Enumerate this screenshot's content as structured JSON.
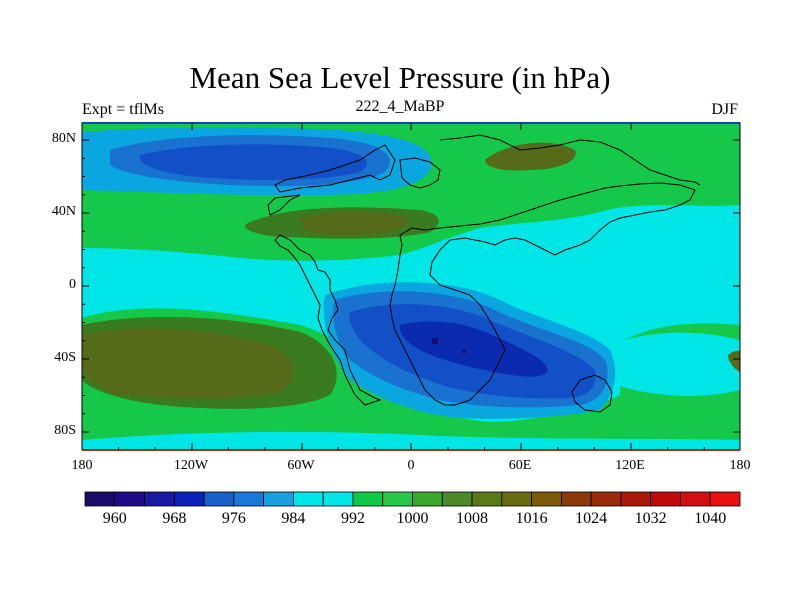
{
  "title": "Mean Sea Level Pressure (in hPa)",
  "subtitle_left": "Expt = tflMs",
  "subtitle_center": "222_4_MaBP",
  "subtitle_right": "DJF",
  "lat_labels": [
    "80N",
    "40N",
    "0",
    "40S",
    "80S"
  ],
  "lon_labels": [
    "180",
    "120W",
    "60W",
    "0",
    "60E",
    "120E",
    "180"
  ],
  "colorbar": {
    "labels": [
      "960",
      "968",
      "976",
      "984",
      "992",
      "1000",
      "1008",
      "1016",
      "1024",
      "1032",
      "1040"
    ],
    "colors": [
      "#1a0b6b",
      "#1f0b8a",
      "#1a1aa0",
      "#0a22b8",
      "#1660c8",
      "#1a78d8",
      "#1aa0e0",
      "#00e5e5",
      "#00e5e5",
      "#10c848",
      "#2ac848",
      "#3aa82a",
      "#4a8a28",
      "#5a7a1a",
      "#6a6a12",
      "#7a5a0a",
      "#8a3a0a",
      "#9a2a0a",
      "#aa1a0a",
      "#c00a0a",
      "#d01010",
      "#e81010"
    ]
  },
  "colors": {
    "background": "#00e5e5",
    "green": "#16c84a",
    "dark_green": "#3a7a20",
    "olive": "#556b1a",
    "light_blue": "#0aa6e0",
    "mid_blue": "#1a72d0",
    "blue": "#1250c8",
    "deep_blue": "#0a2ab0",
    "navy": "#1a0b6b",
    "coast": "#000000"
  }
}
